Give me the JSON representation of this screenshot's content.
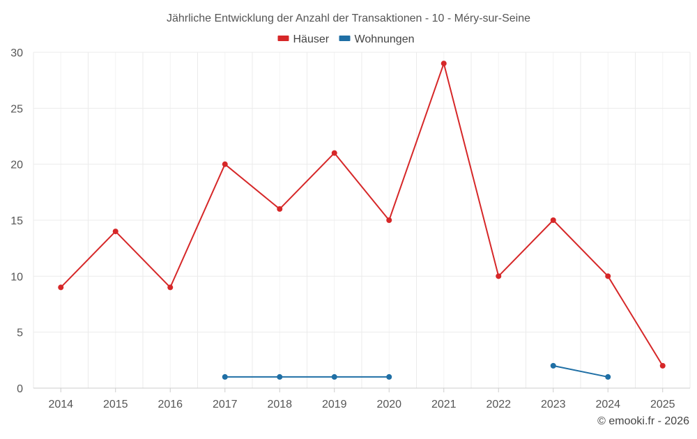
{
  "chart_data": {
    "type": "line",
    "title": "Jährliche Entwicklung der Anzahl der Transaktionen - 10 - Méry-sur-Seine",
    "categories": [
      "2014",
      "2015",
      "2016",
      "2017",
      "2018",
      "2019",
      "2020",
      "2021",
      "2022",
      "2023",
      "2024",
      "2025"
    ],
    "series": [
      {
        "name": "Häuser",
        "color": "#d62728",
        "values": [
          9,
          14,
          9,
          20,
          16,
          21,
          15,
          29,
          10,
          15,
          10,
          2
        ]
      },
      {
        "name": "Wohnungen",
        "color": "#1f6fa5",
        "values": [
          null,
          null,
          null,
          1,
          1,
          1,
          1,
          null,
          null,
          2,
          1,
          null
        ]
      }
    ],
    "yticks": [
      "0",
      "5",
      "10",
      "15",
      "20",
      "25",
      "30"
    ],
    "ylim": [
      0,
      30
    ],
    "xlabel": "",
    "ylabel": "",
    "grid": true,
    "legend_position": "top-center"
  },
  "credit": "© emooki.fr - 2026",
  "colors": {
    "grid": "#ebebeb",
    "axis_text": "#555555",
    "title_text": "#555555"
  }
}
